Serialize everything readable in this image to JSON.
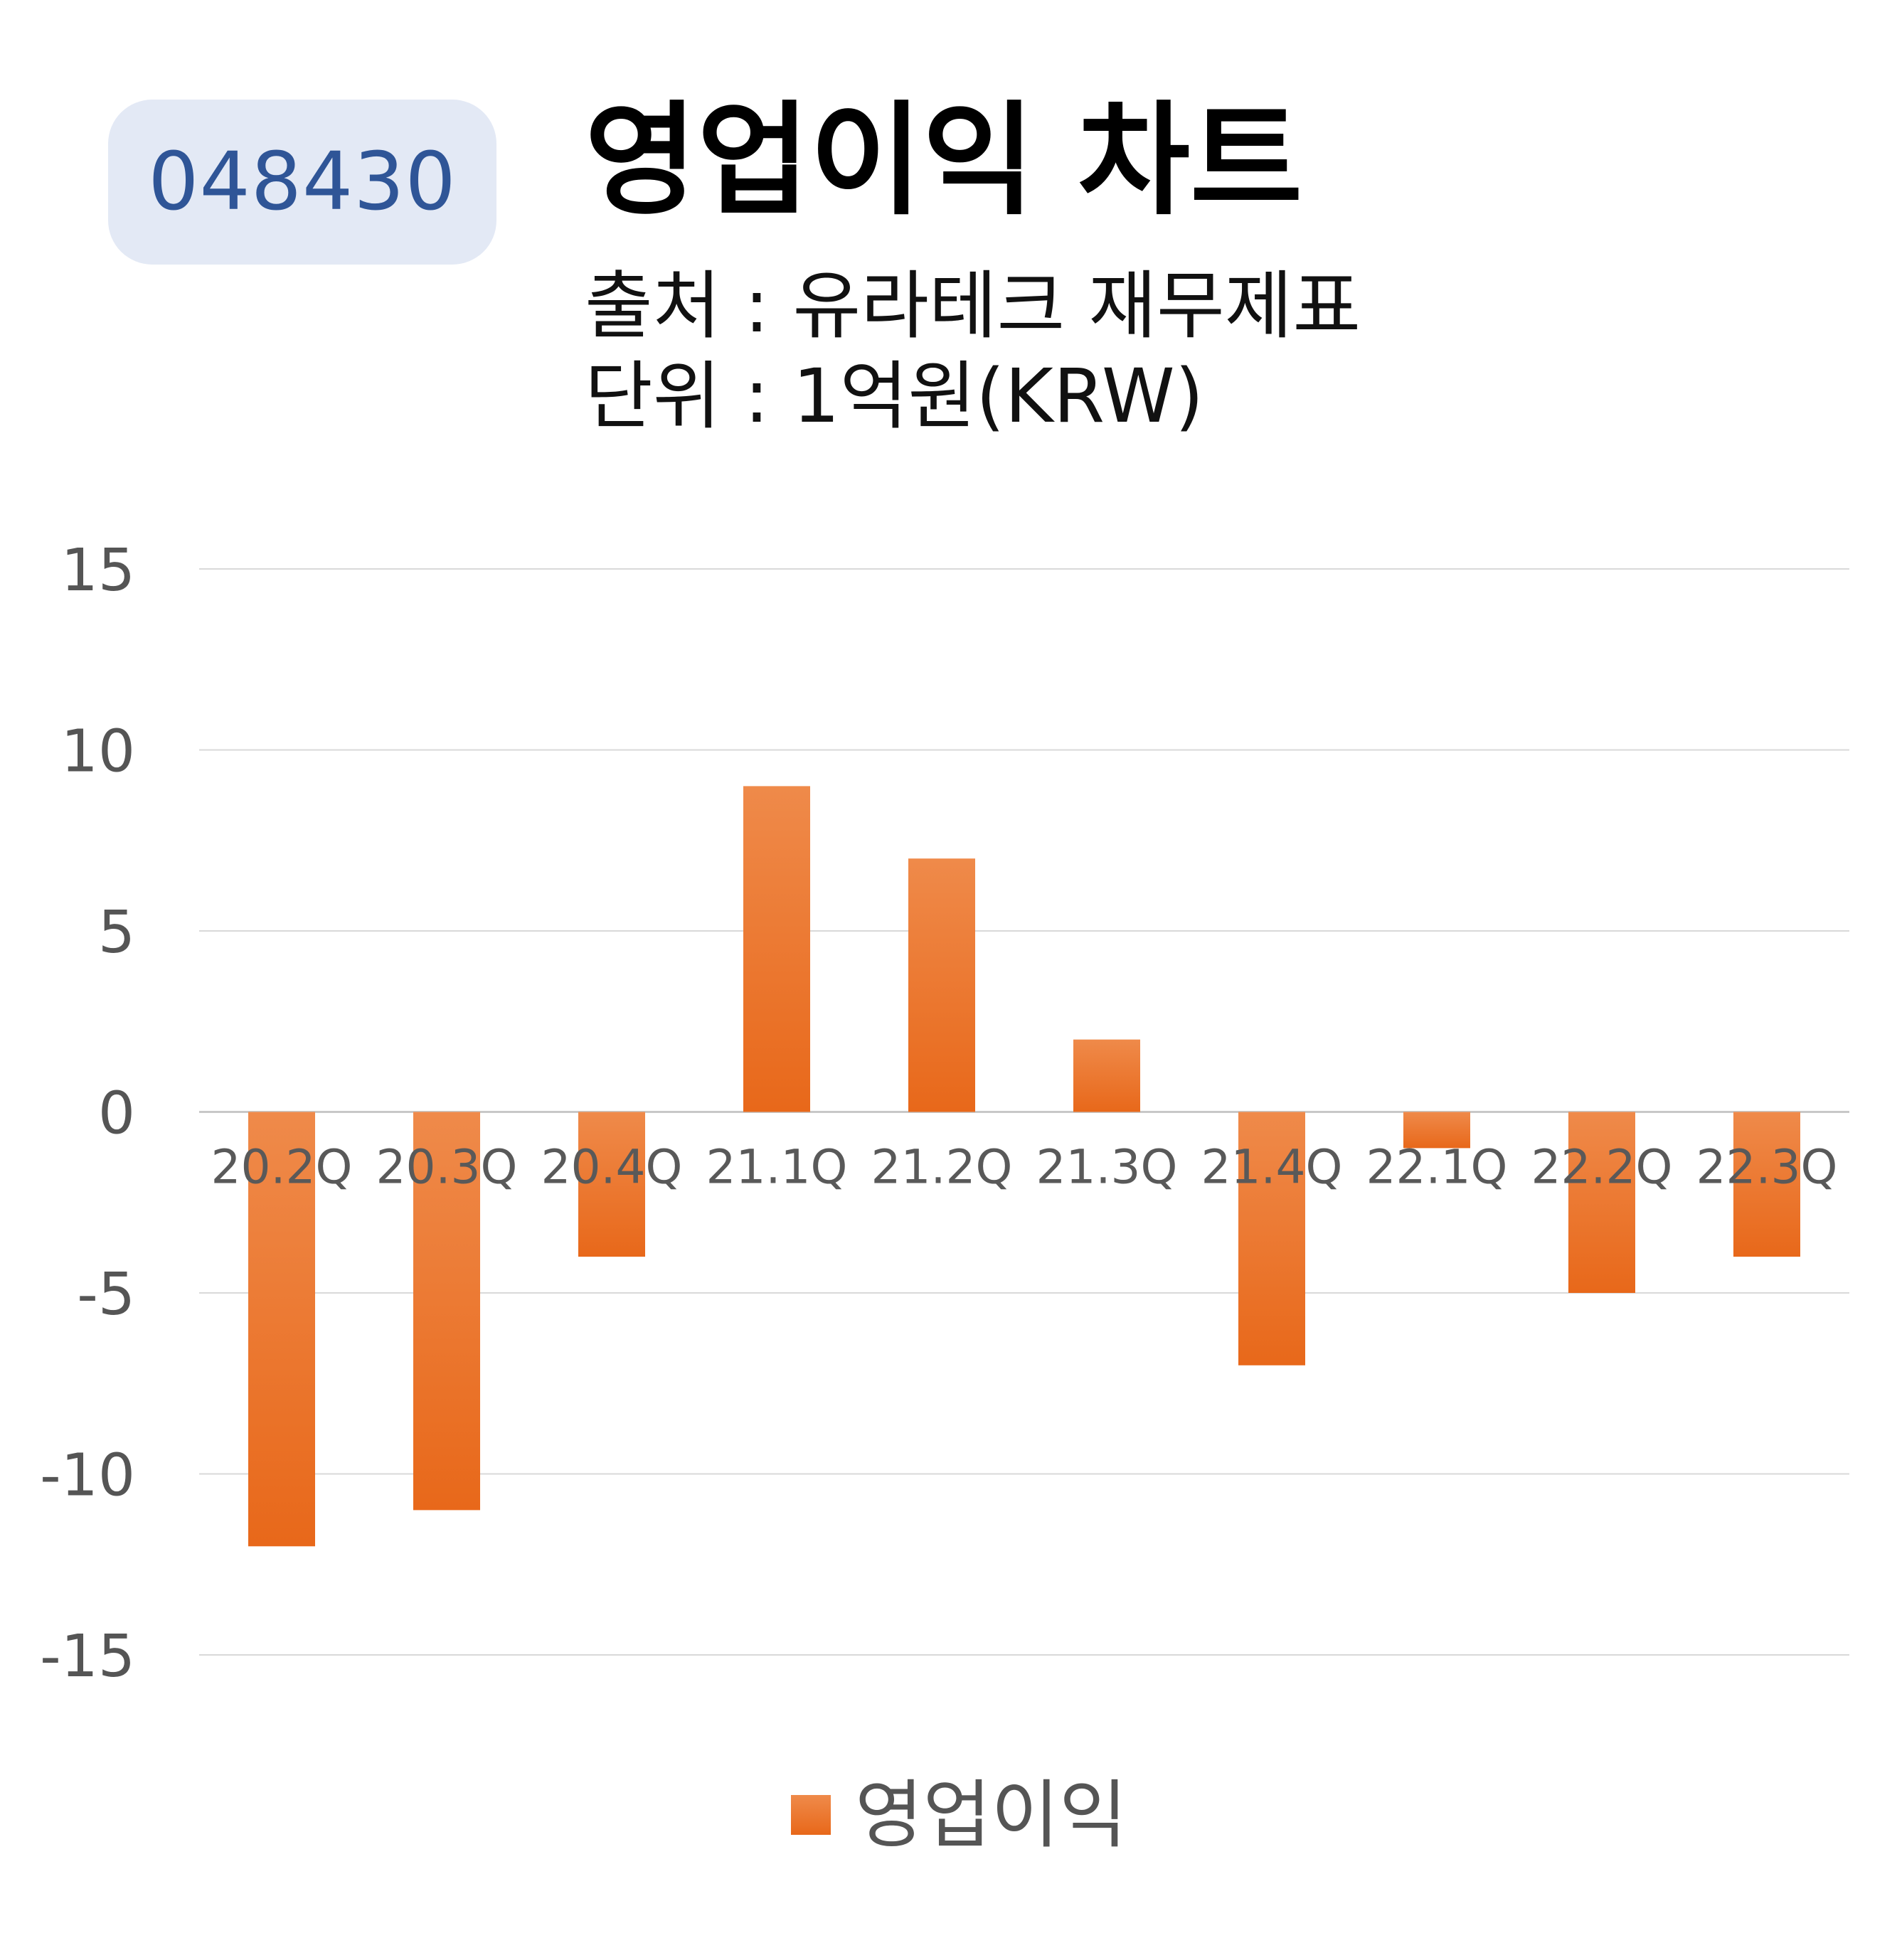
{
  "badge": {
    "code": "048430"
  },
  "header": {
    "title": "영업이익 차트",
    "source": "출처 : 유라테크 재무제표",
    "unit": "단위 : 1억원(KRW)"
  },
  "legend": {
    "label": "영업이익"
  },
  "colors": {
    "bar_top": "#ef8a4a",
    "bar_bottom": "#e8681a",
    "badge_bg": "#e3e9f5",
    "badge_text": "#2f5597",
    "grid": "#d9d9d9"
  },
  "chart_data": {
    "type": "bar",
    "categories": [
      "20.2Q",
      "20.3Q",
      "20.4Q",
      "21.1Q",
      "21.2Q",
      "21.3Q",
      "21.4Q",
      "22.1Q",
      "22.2Q",
      "22.3Q"
    ],
    "series": [
      {
        "name": "영업이익",
        "values": [
          -12,
          -11,
          -4,
          9,
          7,
          2,
          -7,
          -1,
          -5,
          -4
        ]
      }
    ],
    "yticks": [
      "15",
      "10",
      "5",
      "0",
      "-5",
      "-10",
      "-15"
    ],
    "ylim": [
      -15,
      15
    ],
    "grid": true,
    "legend_position": "bottom"
  }
}
